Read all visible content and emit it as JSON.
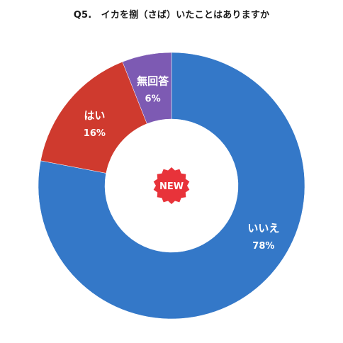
{
  "chart_data": {
    "type": "donut",
    "title": "Q5.　イカを捌（さば）いたことはありますか",
    "slices": [
      {
        "label": "いいえ",
        "value": 78,
        "value_label": "78%",
        "color": "#3478c8"
      },
      {
        "label": "はい",
        "value": 16,
        "value_label": "16%",
        "color": "#cf3a2e"
      },
      {
        "label": "無回答",
        "value": 6,
        "value_label": "6%",
        "color": "#7d5ab3"
      }
    ],
    "start": "top",
    "direction": "clockwise",
    "legend": "none"
  },
  "badge": {
    "text": "NEW",
    "color": "#e8333a"
  }
}
